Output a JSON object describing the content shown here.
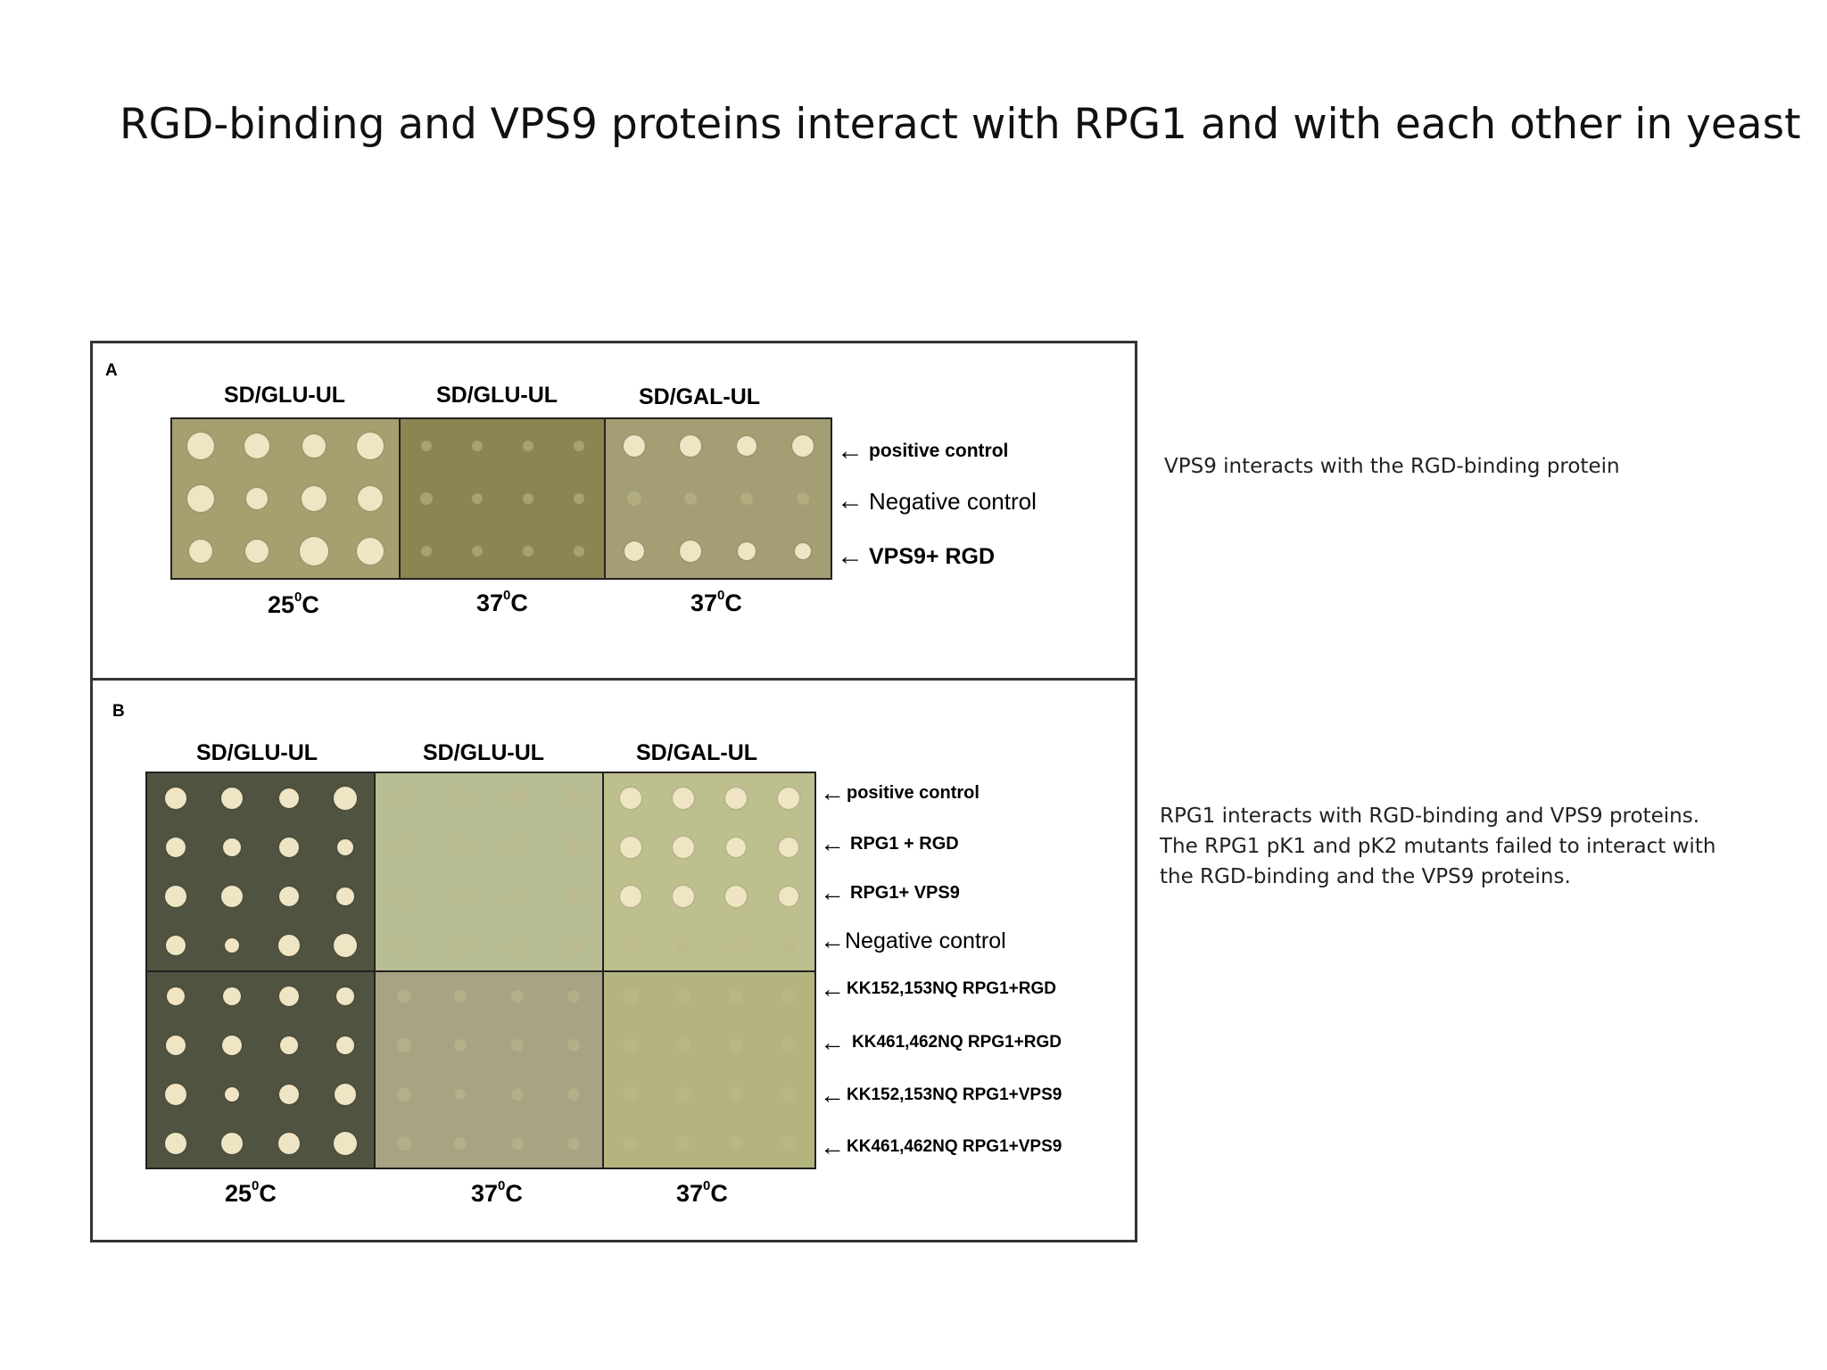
{
  "slide": {
    "title": "RGD-binding and VPS9 proteins interact with RPG1 and with each other in yeast"
  },
  "panel_a": {
    "letter": "A",
    "headers": [
      "SD/GLU-UL",
      "SD/GLU-UL",
      "SD/GAL-UL"
    ],
    "temperatures": [
      "25",
      "37",
      "37"
    ],
    "temp_unit": "C",
    "degree_mark": "0",
    "rows": [
      "positive control",
      "Negative control",
      "VPS9+ RGD"
    ],
    "arrow": "←"
  },
  "panel_b": {
    "letter": "B",
    "headers": [
      "SD/GLU-UL",
      "SD/GLU-UL",
      "SD/GAL-UL"
    ],
    "temperatures": [
      "25",
      "37",
      "37"
    ],
    "temp_unit": "C",
    "degree_mark": "0",
    "rows": [
      "positive control",
      "RPG1 + RGD",
      "RPG1+ VPS9",
      "Negative control",
      "KK152,153NQ RPG1+RGD",
      "KK461,462NQ RPG1+RGD",
      "KK152,153NQ RPG1+VPS9",
      "KK461,462NQ RPG1+VPS9"
    ],
    "arrow": "←"
  },
  "notes": {
    "note_a": "VPS9 interacts with the RGD-binding protein",
    "note_b_lines": [
      "RPG1 interacts with RGD-binding and VPS9 proteins.",
      "The RPG1 pK1 and pK2 mutants failed to interact with",
      "the RGD-binding and the VPS9 proteins."
    ]
  },
  "colors": {
    "plate_glu_25": "#a6a070",
    "plate_glu_37_a": "#8b8552",
    "plate_gal_37_a": "#a39e74",
    "plate_dark_25_b": "#50533f",
    "plate_glu_37_b_top": "#b9bd93",
    "plate_glu_37_b_bottom": "#a7a383",
    "plate_gal_37_b_top": "#bebf8f",
    "plate_gal_37_b_bottom": "#b3b47e",
    "colony_strong": "#efe4c3",
    "colony_faint": "rgba(190,185,140,0.55)"
  }
}
